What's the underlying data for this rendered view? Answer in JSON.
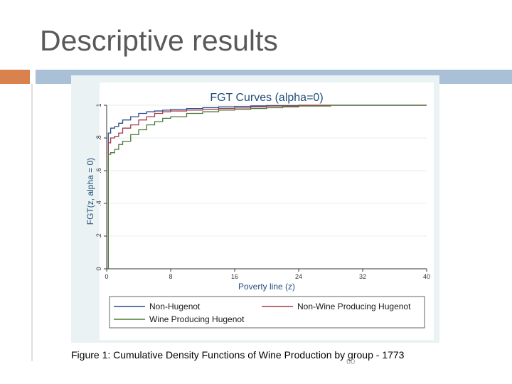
{
  "slide": {
    "title": "Descriptive results",
    "caption": "Figure 1: Cumulative Density Functions of Wine Production by group  - 1773",
    "page_number": "60"
  },
  "colors": {
    "accent_orange": "#d9824d",
    "accent_blue": "#a9c0d7",
    "chart_background": "#eaf2f3",
    "title_color": "#1f4e79"
  },
  "chart_data": {
    "type": "line",
    "title": "FGT Curves (alpha=0)",
    "xlabel": "Poverty line (z)",
    "ylabel": "FGT(z, alpha = 0)",
    "xlim": [
      0,
      40
    ],
    "ylim": [
      0,
      1
    ],
    "xticks": [
      0,
      8,
      16,
      24,
      32,
      40
    ],
    "yticks": [
      0,
      0.2,
      0.4,
      0.6,
      0.8,
      1
    ],
    "ytick_labels": [
      "0",
      ".2",
      ".4",
      ".6",
      ".8",
      "1"
    ],
    "grid": true,
    "legend_position": "bottom",
    "series": [
      {
        "name": "Non-Hugenot",
        "color": "#2e4b8a",
        "x": [
          0,
          0.2,
          0.5,
          1,
          1.5,
          2,
          3,
          4,
          5,
          6,
          7,
          8,
          10,
          12,
          14,
          16,
          18,
          20,
          24,
          28,
          32,
          36,
          40
        ],
        "y": [
          0,
          0.83,
          0.86,
          0.87,
          0.89,
          0.91,
          0.93,
          0.95,
          0.96,
          0.965,
          0.97,
          0.975,
          0.98,
          0.985,
          0.99,
          0.993,
          0.996,
          0.998,
          1,
          1,
          1,
          1,
          1
        ]
      },
      {
        "name": "Non-Wine Producing Hugenot",
        "color": "#a63a4a",
        "x": [
          0,
          0.2,
          0.5,
          1,
          1.5,
          2,
          3,
          4,
          5,
          6,
          7,
          8,
          10,
          12,
          14,
          16,
          18,
          20,
          24,
          28,
          32,
          36,
          40
        ],
        "y": [
          0,
          0.77,
          0.8,
          0.81,
          0.83,
          0.86,
          0.88,
          0.91,
          0.93,
          0.95,
          0.96,
          0.965,
          0.97,
          0.975,
          0.98,
          0.983,
          0.99,
          0.995,
          1,
          1,
          1,
          1,
          1
        ]
      },
      {
        "name": "Wine Producing Hugenot",
        "color": "#4c7a3a",
        "x": [
          0,
          0.2,
          0.5,
          1,
          1.5,
          2,
          3,
          4,
          5,
          6,
          7,
          8,
          10,
          12,
          14,
          16,
          18,
          20,
          22,
          24,
          28,
          32,
          36,
          40
        ],
        "y": [
          0,
          0.7,
          0.71,
          0.73,
          0.76,
          0.78,
          0.82,
          0.85,
          0.88,
          0.9,
          0.92,
          0.93,
          0.95,
          0.96,
          0.97,
          0.975,
          0.98,
          0.985,
          0.99,
          0.995,
          1,
          1,
          1,
          1
        ]
      }
    ]
  }
}
